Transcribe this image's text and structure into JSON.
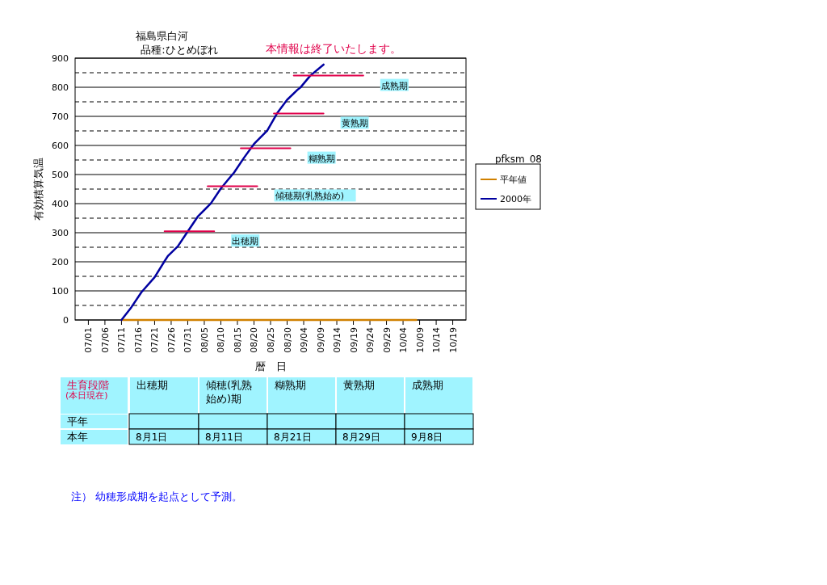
{
  "chart_data": {
    "type": "line",
    "title": "福島県白河",
    "subtitle": "品種:ひとめぼれ",
    "xlabel": "暦　日",
    "ylabel": "有効積算気温",
    "legend_title": "pfksm_08",
    "legend": "right",
    "grid": "y",
    "line_style": "solid",
    "marker": "none",
    "xlim": [
      "--06-27",
      "--10-23"
    ],
    "xticks": [
      {
        "value": "--07-01",
        "label": "07/01"
      },
      {
        "value": "--07-06",
        "label": "07/06"
      },
      {
        "value": "--07-11",
        "label": "07/11"
      },
      {
        "value": "--07-16",
        "label": "07/16"
      },
      {
        "value": "--07-21",
        "label": "07/21"
      },
      {
        "value": "--07-26",
        "label": "07/26"
      },
      {
        "value": "--07-31",
        "label": "07/31"
      },
      {
        "value": "--08-05",
        "label": "08/05"
      },
      {
        "value": "--08-10",
        "label": "08/10"
      },
      {
        "value": "--08-15",
        "label": "08/15"
      },
      {
        "value": "--08-20",
        "label": "08/20"
      },
      {
        "value": "--08-25",
        "label": "08/25"
      },
      {
        "value": "--08-30",
        "label": "08/30"
      },
      {
        "value": "--09-04",
        "label": "09/04"
      },
      {
        "value": "--09-09",
        "label": "09/09"
      },
      {
        "value": "--09-14",
        "label": "09/14"
      },
      {
        "value": "--09-19",
        "label": "09/19"
      },
      {
        "value": "--09-24",
        "label": "09/24"
      },
      {
        "value": "--09-29",
        "label": "09/29"
      },
      {
        "value": "--10-04",
        "label": "10/04"
      },
      {
        "value": "--10-09",
        "label": "10/09"
      },
      {
        "value": "--10-14",
        "label": "10/14"
      },
      {
        "value": "--10-19",
        "label": "10/19"
      }
    ],
    "ylim": [
      0,
      900
    ],
    "yticks": [
      0,
      {
        "value": 50,
        "label": null
      },
      100,
      {
        "value": 150,
        "label": null
      },
      200,
      {
        "value": 250,
        "label": null
      },
      300,
      {
        "value": 350,
        "label": null
      },
      400,
      {
        "value": 450,
        "label": null
      },
      500,
      {
        "value": 550,
        "label": null
      },
      600,
      {
        "value": 650,
        "label": null
      },
      700,
      {
        "value": 750,
        "label": null
      },
      800,
      {
        "value": 850,
        "label": null
      },
      900
    ],
    "series": [
      {
        "name": "平年値",
        "color": "#d08000",
        "x": [
          "--07-11",
          "--10-08"
        ],
        "values": [
          0,
          0
        ]
      },
      {
        "name": "2000年",
        "color": "#0000a0",
        "x": [
          "--07-11",
          "--07-14",
          "--07-17",
          "--07-21",
          "--07-24",
          "--07-25",
          "--07-28",
          "--07-31",
          "--08-03",
          "--08-07",
          "--08-10",
          "--08-12",
          "--08-14",
          "--08-17",
          "--08-20",
          "--08-24",
          "--08-27",
          "--08-30",
          "--09-02",
          "--09-03",
          "--09-06",
          "--09-10"
        ],
        "values": [
          0,
          44,
          95,
          147,
          202,
          220,
          253,
          304,
          355,
          401,
          452,
          480,
          507,
          558,
          605,
          651,
          711,
          757,
          790,
          799,
          840,
          878
        ]
      },
      {
        "color": "#e0004a",
        "x": [
          "--07-24",
          "--08-08"
        ],
        "values": [
          305,
          305
        ]
      },
      {
        "color": "#e0004a",
        "x": [
          "--08-06",
          "--08-21"
        ],
        "values": [
          460,
          460
        ]
      },
      {
        "color": "#e0004a",
        "x": [
          "--08-16",
          "--08-31"
        ],
        "values": [
          590,
          590
        ]
      },
      {
        "color": "#e0004a",
        "x": [
          "--08-26",
          "--09-10"
        ],
        "values": [
          710,
          710
        ]
      },
      {
        "color": "#e0004a",
        "x": [
          "--09-01",
          "--09-22"
        ],
        "values": [
          840,
          840
        ]
      }
    ],
    "annotations": [
      "本情報は終了いたします。",
      "出穂期",
      "傾穂期(乳熟始め)",
      "糊熟期",
      "黄熟期",
      "成熟期",
      "生育段階",
      "(本日現在)",
      "出穂期",
      "傾穂(乳熟始め)期",
      "糊熟期",
      "黄熟期",
      "成熟期",
      "平年",
      "本年",
      "8月1日",
      "8月11日",
      "8月21日",
      "8月29日",
      "9月8日",
      "注） 幼穂形成期を起点として予測。"
    ]
  }
}
